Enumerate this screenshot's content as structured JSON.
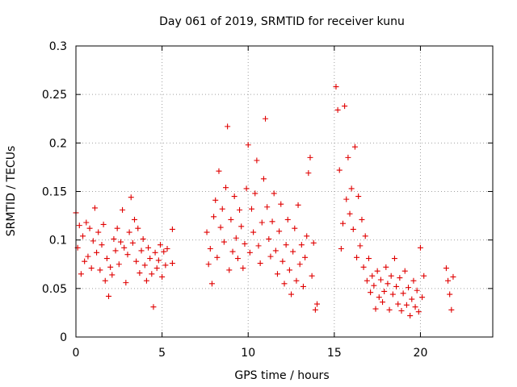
{
  "chart_data": {
    "type": "scatter",
    "title": "Day 061 of 2019, SRMTID for receiver kunu",
    "xlabel": "GPS time / hours",
    "ylabel": "SRMTID / TECUs",
    "xlim": [
      0,
      24.2
    ],
    "ylim": [
      0,
      0.3
    ],
    "x_ticks": [
      0,
      5,
      10,
      15,
      20
    ],
    "x_tick_labels": [
      "0",
      "5",
      "10",
      "15",
      "20"
    ],
    "y_ticks": [
      0,
      0.05,
      0.1,
      0.15,
      0.2,
      0.25,
      0.3
    ],
    "y_tick_labels": [
      "0",
      "0.05",
      "0.1",
      "0.15",
      "0.2",
      "0.25",
      "0.3"
    ],
    "grid": true,
    "marker": "+",
    "color": "#e00000",
    "series": [
      {
        "name": "SRMTID",
        "points": [
          [
            0.0,
            0.128
          ],
          [
            0.1,
            0.092
          ],
          [
            0.2,
            0.115
          ],
          [
            0.3,
            0.065
          ],
          [
            0.4,
            0.104
          ],
          [
            0.5,
            0.078
          ],
          [
            0.6,
            0.118
          ],
          [
            0.7,
            0.083
          ],
          [
            0.8,
            0.112
          ],
          [
            0.9,
            0.071
          ],
          [
            1.0,
            0.099
          ],
          [
            1.1,
            0.133
          ],
          [
            1.2,
            0.087
          ],
          [
            1.3,
            0.108
          ],
          [
            1.4,
            0.069
          ],
          [
            1.5,
            0.095
          ],
          [
            1.6,
            0.116
          ],
          [
            1.7,
            0.058
          ],
          [
            1.8,
            0.081
          ],
          [
            1.9,
            0.042
          ],
          [
            2.0,
            0.072
          ],
          [
            2.1,
            0.064
          ],
          [
            2.2,
            0.101
          ],
          [
            2.3,
            0.089
          ],
          [
            2.4,
            0.112
          ],
          [
            2.5,
            0.075
          ],
          [
            2.6,
            0.098
          ],
          [
            2.7,
            0.131
          ],
          [
            2.8,
            0.092
          ],
          [
            2.9,
            0.056
          ],
          [
            3.0,
            0.085
          ],
          [
            3.1,
            0.108
          ],
          [
            3.2,
            0.144
          ],
          [
            3.3,
            0.097
          ],
          [
            3.4,
            0.121
          ],
          [
            3.5,
            0.078
          ],
          [
            3.6,
            0.112
          ],
          [
            3.7,
            0.066
          ],
          [
            3.8,
            0.089
          ],
          [
            3.9,
            0.101
          ],
          [
            4.0,
            0.074
          ],
          [
            4.1,
            0.058
          ],
          [
            4.2,
            0.092
          ],
          [
            4.3,
            0.081
          ],
          [
            4.4,
            0.065
          ],
          [
            4.5,
            0.031
          ],
          [
            4.6,
            0.087
          ],
          [
            4.7,
            0.071
          ],
          [
            4.8,
            0.079
          ],
          [
            4.9,
            0.095
          ],
          [
            5.0,
            0.062
          ],
          [
            5.1,
            0.088
          ],
          [
            5.2,
            0.074
          ],
          [
            5.3,
            0.091
          ],
          [
            5.6,
            0.111
          ],
          [
            5.6,
            0.076
          ],
          [
            7.6,
            0.108
          ],
          [
            7.7,
            0.075
          ],
          [
            7.8,
            0.091
          ],
          [
            7.9,
            0.055
          ],
          [
            8.0,
            0.124
          ],
          [
            8.1,
            0.141
          ],
          [
            8.2,
            0.082
          ],
          [
            8.3,
            0.171
          ],
          [
            8.4,
            0.113
          ],
          [
            8.5,
            0.132
          ],
          [
            8.6,
            0.098
          ],
          [
            8.7,
            0.154
          ],
          [
            8.8,
            0.217
          ],
          [
            8.9,
            0.069
          ],
          [
            9.0,
            0.121
          ],
          [
            9.1,
            0.088
          ],
          [
            9.2,
            0.145
          ],
          [
            9.3,
            0.102
          ],
          [
            9.4,
            0.081
          ],
          [
            9.5,
            0.131
          ],
          [
            9.6,
            0.114
          ],
          [
            9.7,
            0.071
          ],
          [
            9.8,
            0.096
          ],
          [
            9.9,
            0.153
          ],
          [
            10.0,
            0.198
          ],
          [
            10.1,
            0.087
          ],
          [
            10.2,
            0.132
          ],
          [
            10.3,
            0.108
          ],
          [
            10.4,
            0.148
          ],
          [
            10.5,
            0.182
          ],
          [
            10.6,
            0.094
          ],
          [
            10.7,
            0.076
          ],
          [
            10.8,
            0.118
          ],
          [
            10.9,
            0.163
          ],
          [
            11.0,
            0.225
          ],
          [
            11.1,
            0.134
          ],
          [
            11.2,
            0.101
          ],
          [
            11.3,
            0.083
          ],
          [
            11.4,
            0.119
          ],
          [
            11.5,
            0.148
          ],
          [
            11.6,
            0.089
          ],
          [
            11.7,
            0.065
          ],
          [
            11.8,
            0.109
          ],
          [
            11.9,
            0.137
          ],
          [
            12.0,
            0.078
          ],
          [
            12.1,
            0.055
          ],
          [
            12.2,
            0.095
          ],
          [
            12.3,
            0.121
          ],
          [
            12.4,
            0.069
          ],
          [
            12.5,
            0.044
          ],
          [
            12.6,
            0.088
          ],
          [
            12.7,
            0.112
          ],
          [
            12.8,
            0.058
          ],
          [
            12.9,
            0.136
          ],
          [
            13.0,
            0.075
          ],
          [
            13.1,
            0.095
          ],
          [
            13.2,
            0.052
          ],
          [
            13.3,
            0.082
          ],
          [
            13.4,
            0.104
          ],
          [
            13.5,
            0.169
          ],
          [
            13.6,
            0.185
          ],
          [
            13.7,
            0.063
          ],
          [
            13.8,
            0.097
          ],
          [
            13.9,
            0.028
          ],
          [
            14.0,
            0.034
          ],
          [
            15.1,
            0.258
          ],
          [
            15.2,
            0.234
          ],
          [
            15.3,
            0.172
          ],
          [
            15.4,
            0.091
          ],
          [
            15.5,
            0.117
          ],
          [
            15.6,
            0.238
          ],
          [
            15.7,
            0.142
          ],
          [
            15.8,
            0.185
          ],
          [
            15.9,
            0.127
          ],
          [
            16.0,
            0.153
          ],
          [
            16.1,
            0.111
          ],
          [
            16.2,
            0.196
          ],
          [
            16.3,
            0.082
          ],
          [
            16.4,
            0.145
          ],
          [
            16.5,
            0.094
          ],
          [
            16.6,
            0.121
          ],
          [
            16.7,
            0.072
          ],
          [
            16.8,
            0.104
          ],
          [
            16.9,
            0.058
          ],
          [
            17.0,
            0.081
          ],
          [
            17.1,
            0.046
          ],
          [
            17.2,
            0.063
          ],
          [
            17.3,
            0.053
          ],
          [
            17.4,
            0.029
          ],
          [
            17.5,
            0.068
          ],
          [
            17.6,
            0.041
          ],
          [
            17.7,
            0.059
          ],
          [
            17.8,
            0.036
          ],
          [
            17.9,
            0.047
          ],
          [
            18.0,
            0.072
          ],
          [
            18.1,
            0.055
          ],
          [
            18.2,
            0.028
          ],
          [
            18.3,
            0.063
          ],
          [
            18.4,
            0.044
          ],
          [
            18.5,
            0.081
          ],
          [
            18.6,
            0.052
          ],
          [
            18.7,
            0.034
          ],
          [
            18.8,
            0.061
          ],
          [
            18.9,
            0.027
          ],
          [
            19.0,
            0.045
          ],
          [
            19.1,
            0.068
          ],
          [
            19.2,
            0.033
          ],
          [
            19.3,
            0.051
          ],
          [
            19.4,
            0.022
          ],
          [
            19.5,
            0.039
          ],
          [
            19.6,
            0.058
          ],
          [
            19.7,
            0.031
          ],
          [
            19.8,
            0.048
          ],
          [
            19.9,
            0.026
          ],
          [
            20.0,
            0.092
          ],
          [
            20.1,
            0.041
          ],
          [
            20.2,
            0.063
          ],
          [
            21.5,
            0.071
          ],
          [
            21.6,
            0.058
          ],
          [
            21.7,
            0.044
          ],
          [
            21.8,
            0.028
          ],
          [
            21.9,
            0.062
          ]
        ]
      }
    ]
  }
}
